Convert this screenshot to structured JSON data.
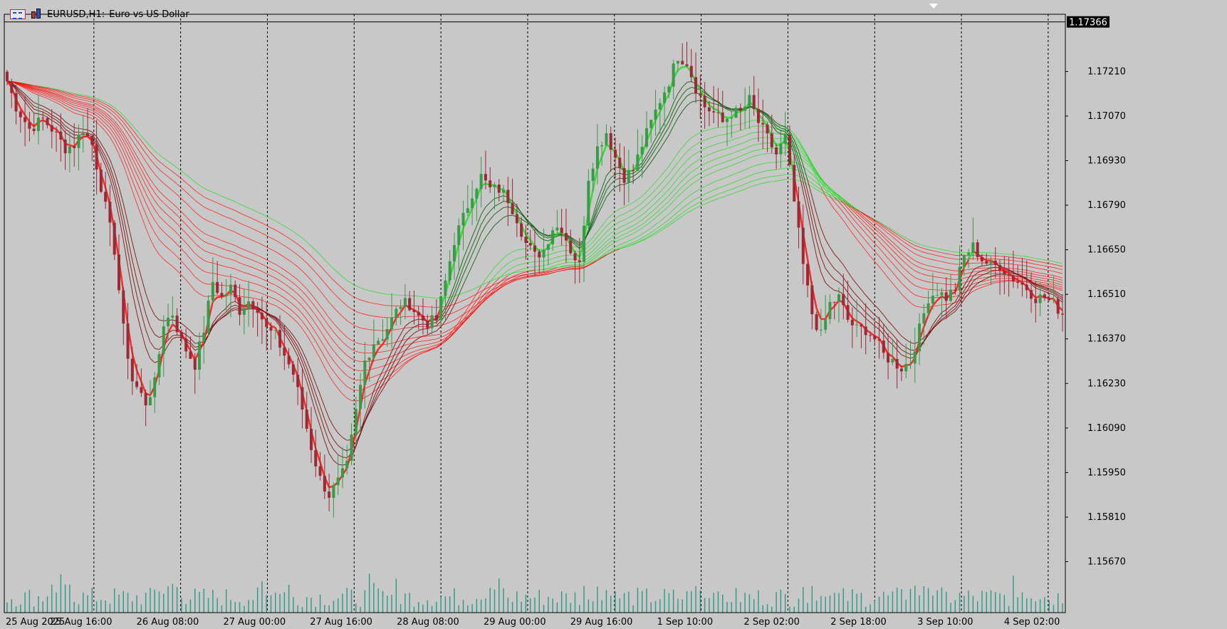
{
  "header": {
    "symbol_label": "EURUSD,H1:",
    "description": "Euro vs US Dollar",
    "icons": [
      "chart-window-icon",
      "chart-type-icon"
    ]
  },
  "price_label": "1.17366",
  "colors": {
    "background": "#c8c8c8",
    "bull_candle": "#3a9a4a",
    "bear_candle": "#9a2a38",
    "volume": "#3a9a8a",
    "fast_up": "#22dd22",
    "fast_down": "#ff1010",
    "slow_up": "#0a5a0a",
    "slow_down": "#7a0a0a"
  },
  "chart_data": {
    "type": "candlestick",
    "symbol": "EURUSD",
    "timeframe": "H1",
    "y_ticks": [
      "1.17210",
      "1.17070",
      "1.16930",
      "1.16790",
      "1.16650",
      "1.16510",
      "1.16370",
      "1.16230",
      "1.16090",
      "1.15950",
      "1.15810",
      "1.15670"
    ],
    "x_ticks": [
      "25 Aug 2025",
      "25 Aug 16:00",
      "26 Aug 08:00",
      "27 Aug 00:00",
      "27 Aug 16:00",
      "28 Aug 08:00",
      "29 Aug 00:00",
      "29 Aug 16:00",
      "1 Sep 10:00",
      "2 Sep 02:00",
      "2 Sep 18:00",
      "3 Sep 10:00",
      "4 Sep 02:00"
    ],
    "ylim": [
      1.1551,
      1.1739
    ],
    "current_price": 1.17366,
    "grid": "vertical-dashed",
    "indicator": "Guppy multiple moving average ribbon",
    "price_anchors": [
      [
        0,
        1.1718
      ],
      [
        2,
        1.171
      ],
      [
        5,
        1.1703
      ],
      [
        8,
        1.1706
      ],
      [
        10,
        1.1703
      ],
      [
        13,
        1.1697
      ],
      [
        15,
        1.1698
      ],
      [
        17,
        1.1703
      ],
      [
        19,
        1.1698
      ],
      [
        21,
        1.1685
      ],
      [
        24,
        1.1665
      ],
      [
        26,
        1.164
      ],
      [
        28,
        1.1624
      ],
      [
        31,
        1.1617
      ],
      [
        33,
        1.1623
      ],
      [
        35,
        1.1642
      ],
      [
        37,
        1.1645
      ],
      [
        39,
        1.1636
      ],
      [
        42,
        1.1629
      ],
      [
        44,
        1.164
      ],
      [
        46,
        1.1655
      ],
      [
        48,
        1.165
      ],
      [
        50,
        1.1653
      ],
      [
        52,
        1.1646
      ],
      [
        54,
        1.1649
      ],
      [
        56,
        1.1647
      ],
      [
        58,
        1.164
      ],
      [
        60,
        1.1638
      ],
      [
        62,
        1.1632
      ],
      [
        64,
        1.1626
      ],
      [
        66,
        1.1615
      ],
      [
        68,
        1.1603
      ],
      [
        70,
        1.1593
      ],
      [
        72,
        1.1588
      ],
      [
        74,
        1.1592
      ],
      [
        76,
        1.1597
      ],
      [
        78,
        1.1614
      ],
      [
        80,
        1.163
      ],
      [
        82,
        1.1636
      ],
      [
        84,
        1.1638
      ],
      [
        86,
        1.1643
      ],
      [
        88,
        1.1648
      ],
      [
        90,
        1.1648
      ],
      [
        92,
        1.1644
      ],
      [
        94,
        1.1642
      ],
      [
        96,
        1.1643
      ],
      [
        98,
        1.1655
      ],
      [
        100,
        1.1668
      ],
      [
        102,
        1.1675
      ],
      [
        104,
        1.1683
      ],
      [
        106,
        1.1688
      ],
      [
        108,
        1.1684
      ],
      [
        110,
        1.1684
      ],
      [
        112,
        1.1681
      ],
      [
        114,
        1.1675
      ],
      [
        116,
        1.1667
      ],
      [
        118,
        1.1663
      ],
      [
        120,
        1.1665
      ],
      [
        122,
        1.1672
      ],
      [
        124,
        1.1672
      ],
      [
        126,
        1.1665
      ],
      [
        128,
        1.166
      ],
      [
        130,
        1.1688
      ],
      [
        132,
        1.1697
      ],
      [
        134,
        1.1702
      ],
      [
        136,
        1.1694
      ],
      [
        138,
        1.1688
      ],
      [
        140,
        1.169
      ],
      [
        142,
        1.1698
      ],
      [
        144,
        1.1705
      ],
      [
        146,
        1.1712
      ],
      [
        148,
        1.1718
      ],
      [
        150,
        1.1726
      ],
      [
        152,
        1.1724
      ],
      [
        154,
        1.1716
      ],
      [
        156,
        1.171
      ],
      [
        158,
        1.1708
      ],
      [
        160,
        1.1705
      ],
      [
        162,
        1.1708
      ],
      [
        164,
        1.1708
      ],
      [
        166,
        1.1712
      ],
      [
        168,
        1.1705
      ],
      [
        170,
        1.17
      ],
      [
        172,
        1.1695
      ],
      [
        174,
        1.17
      ],
      [
        176,
        1.168
      ],
      [
        178,
        1.166
      ],
      [
        180,
        1.1645
      ],
      [
        182,
        1.1638
      ],
      [
        184,
        1.1648
      ],
      [
        186,
        1.165
      ],
      [
        188,
        1.1643
      ],
      [
        190,
        1.164
      ],
      [
        192,
        1.164
      ],
      [
        194,
        1.1637
      ],
      [
        196,
        1.1632
      ],
      [
        198,
        1.163
      ],
      [
        200,
        1.1628
      ],
      [
        202,
        1.163
      ],
      [
        204,
        1.164
      ],
      [
        206,
        1.165
      ],
      [
        208,
        1.1652
      ],
      [
        210,
        1.165
      ],
      [
        212,
        1.1653
      ],
      [
        214,
        1.1663
      ],
      [
        216,
        1.1666
      ],
      [
        218,
        1.1662
      ],
      [
        220,
        1.166
      ],
      [
        222,
        1.166
      ],
      [
        224,
        1.1657
      ],
      [
        226,
        1.1655
      ],
      [
        228,
        1.1653
      ],
      [
        230,
        1.165
      ],
      [
        232,
        1.165
      ],
      [
        234,
        1.1648
      ],
      [
        236,
        1.1645
      ]
    ]
  }
}
